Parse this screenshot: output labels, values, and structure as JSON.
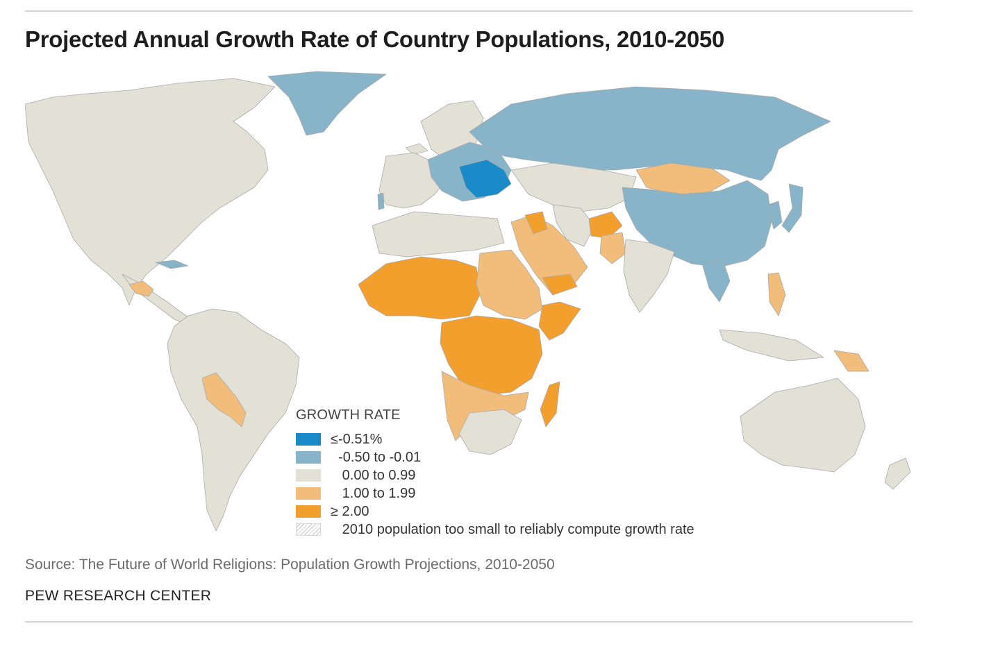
{
  "title": "Projected Annual Growth Rate of Country Populations, 2010-2050",
  "source": "Source: The Future of World Religions: Population Growth Projections, 2010-2050",
  "credit": "PEW RESEARCH CENTER",
  "legend": {
    "title": "GROWTH RATE",
    "items": [
      {
        "label": "≤-0.51%",
        "color": "#1a8bc8",
        "indent": ""
      },
      {
        "label": "-0.50 to -0.01",
        "color": "#87b4c9",
        "indent": "  "
      },
      {
        "label": "0.00 to 0.99",
        "color": "#e3e0d6",
        "indent": "   "
      },
      {
        "label": "1.00 to 1.99",
        "color": "#f2bd7a",
        "indent": "   "
      },
      {
        "label": "≥ 2.00",
        "color": "#f29f2e",
        "indent": ""
      },
      {
        "label": "2010 population too small to reliably compute growth rate",
        "color": "hatch",
        "indent": "   "
      }
    ]
  },
  "colors": {
    "very_negative": "#1a8bc8",
    "negative": "#87b4c9",
    "low": "#e3e0d6",
    "medium": "#f2bd7a",
    "high": "#f29f2e",
    "border": "#a9a9a9",
    "ocean": "#ffffff"
  }
}
